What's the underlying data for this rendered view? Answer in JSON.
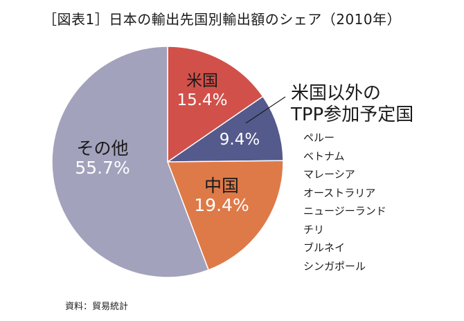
{
  "title": "［図表1］日本の輸出先国別輸出額のシェア（2010年）",
  "chart_data": {
    "type": "pie",
    "slices": [
      {
        "name": "米国",
        "value": 15.4,
        "label": "15.4%",
        "color": "#d2504a"
      },
      {
        "name": "",
        "value": 9.4,
        "label": "9.4%",
        "color": "#555a8c"
      },
      {
        "name": "中国",
        "value": 19.4,
        "label": "19.4%",
        "color": "#de7a48"
      },
      {
        "name": "その他",
        "value": 55.7,
        "label": "55.7%",
        "color": "#a2a2bc"
      }
    ]
  },
  "callout": {
    "line1": "米国以外の",
    "line2": "TPP参加予定国",
    "countries": [
      "ペルー",
      "ベトナム",
      "マレーシア",
      "オーストラリア",
      "ニュージーランド",
      "チリ",
      "ブルネイ",
      "シンガポール"
    ]
  },
  "source": "資料：貿易統計"
}
